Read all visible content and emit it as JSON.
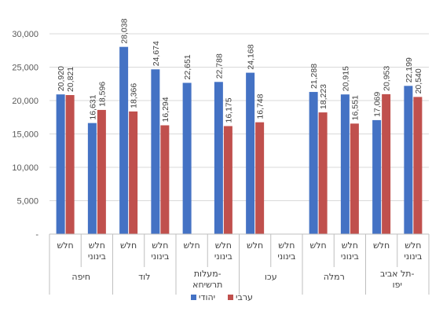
{
  "chart_data": {
    "type": "bar",
    "ylim": [
      0,
      30000
    ],
    "yticks": [
      {
        "value": 0,
        "label": "-"
      },
      {
        "value": 5000,
        "label": "5,000"
      },
      {
        "value": 10000,
        "label": "10,000"
      },
      {
        "value": 15000,
        "label": "15,000"
      },
      {
        "value": 20000,
        "label": "20,000"
      },
      {
        "value": 25000,
        "label": "25,000"
      },
      {
        "value": 30000,
        "label": "30,000"
      }
    ],
    "grid": true,
    "legend_position": "bottom",
    "groups": [
      {
        "name": "חיפה",
        "subcategories": [
          "חלש",
          "חלש בינוני"
        ]
      },
      {
        "name": "לוד",
        "subcategories": [
          "חלש",
          "חלש בינוני"
        ]
      },
      {
        "name": "מעלות-תרשיחא",
        "subcategories": [
          "חלש",
          "חלש בינוני"
        ]
      },
      {
        "name": "עכו",
        "subcategories": [
          "חלש",
          "חלש בינוני"
        ]
      },
      {
        "name": "רמלה",
        "subcategories": [
          "חלש",
          "חלש בינוני"
        ]
      },
      {
        "name": "תל אביב-יפו",
        "subcategories": [
          "חלש",
          "חלש בינוני"
        ]
      }
    ],
    "series": [
      {
        "name": "יהודי",
        "color": "#4472C4",
        "values": [
          20920,
          16631,
          28038,
          24674,
          22651,
          22788,
          24168,
          null,
          21288,
          20915,
          17069,
          22199
        ],
        "labels": [
          "20,920",
          "16,631",
          "28,038",
          "24,674",
          "22,651",
          "22,788",
          "24,168",
          null,
          "21,288",
          "20,915",
          "17,069",
          "22,199"
        ]
      },
      {
        "name": "ערבי",
        "color": "#C0504D",
        "values": [
          20821,
          18596,
          18366,
          16294,
          null,
          16175,
          16748,
          null,
          18223,
          16551,
          20953,
          20540
        ],
        "labels": [
          "20,821",
          "18,596",
          "18,366",
          "16,294",
          null,
          "16,175",
          "16,748",
          null,
          "18,223",
          "16,551",
          "20,953",
          "20,540"
        ]
      }
    ]
  }
}
